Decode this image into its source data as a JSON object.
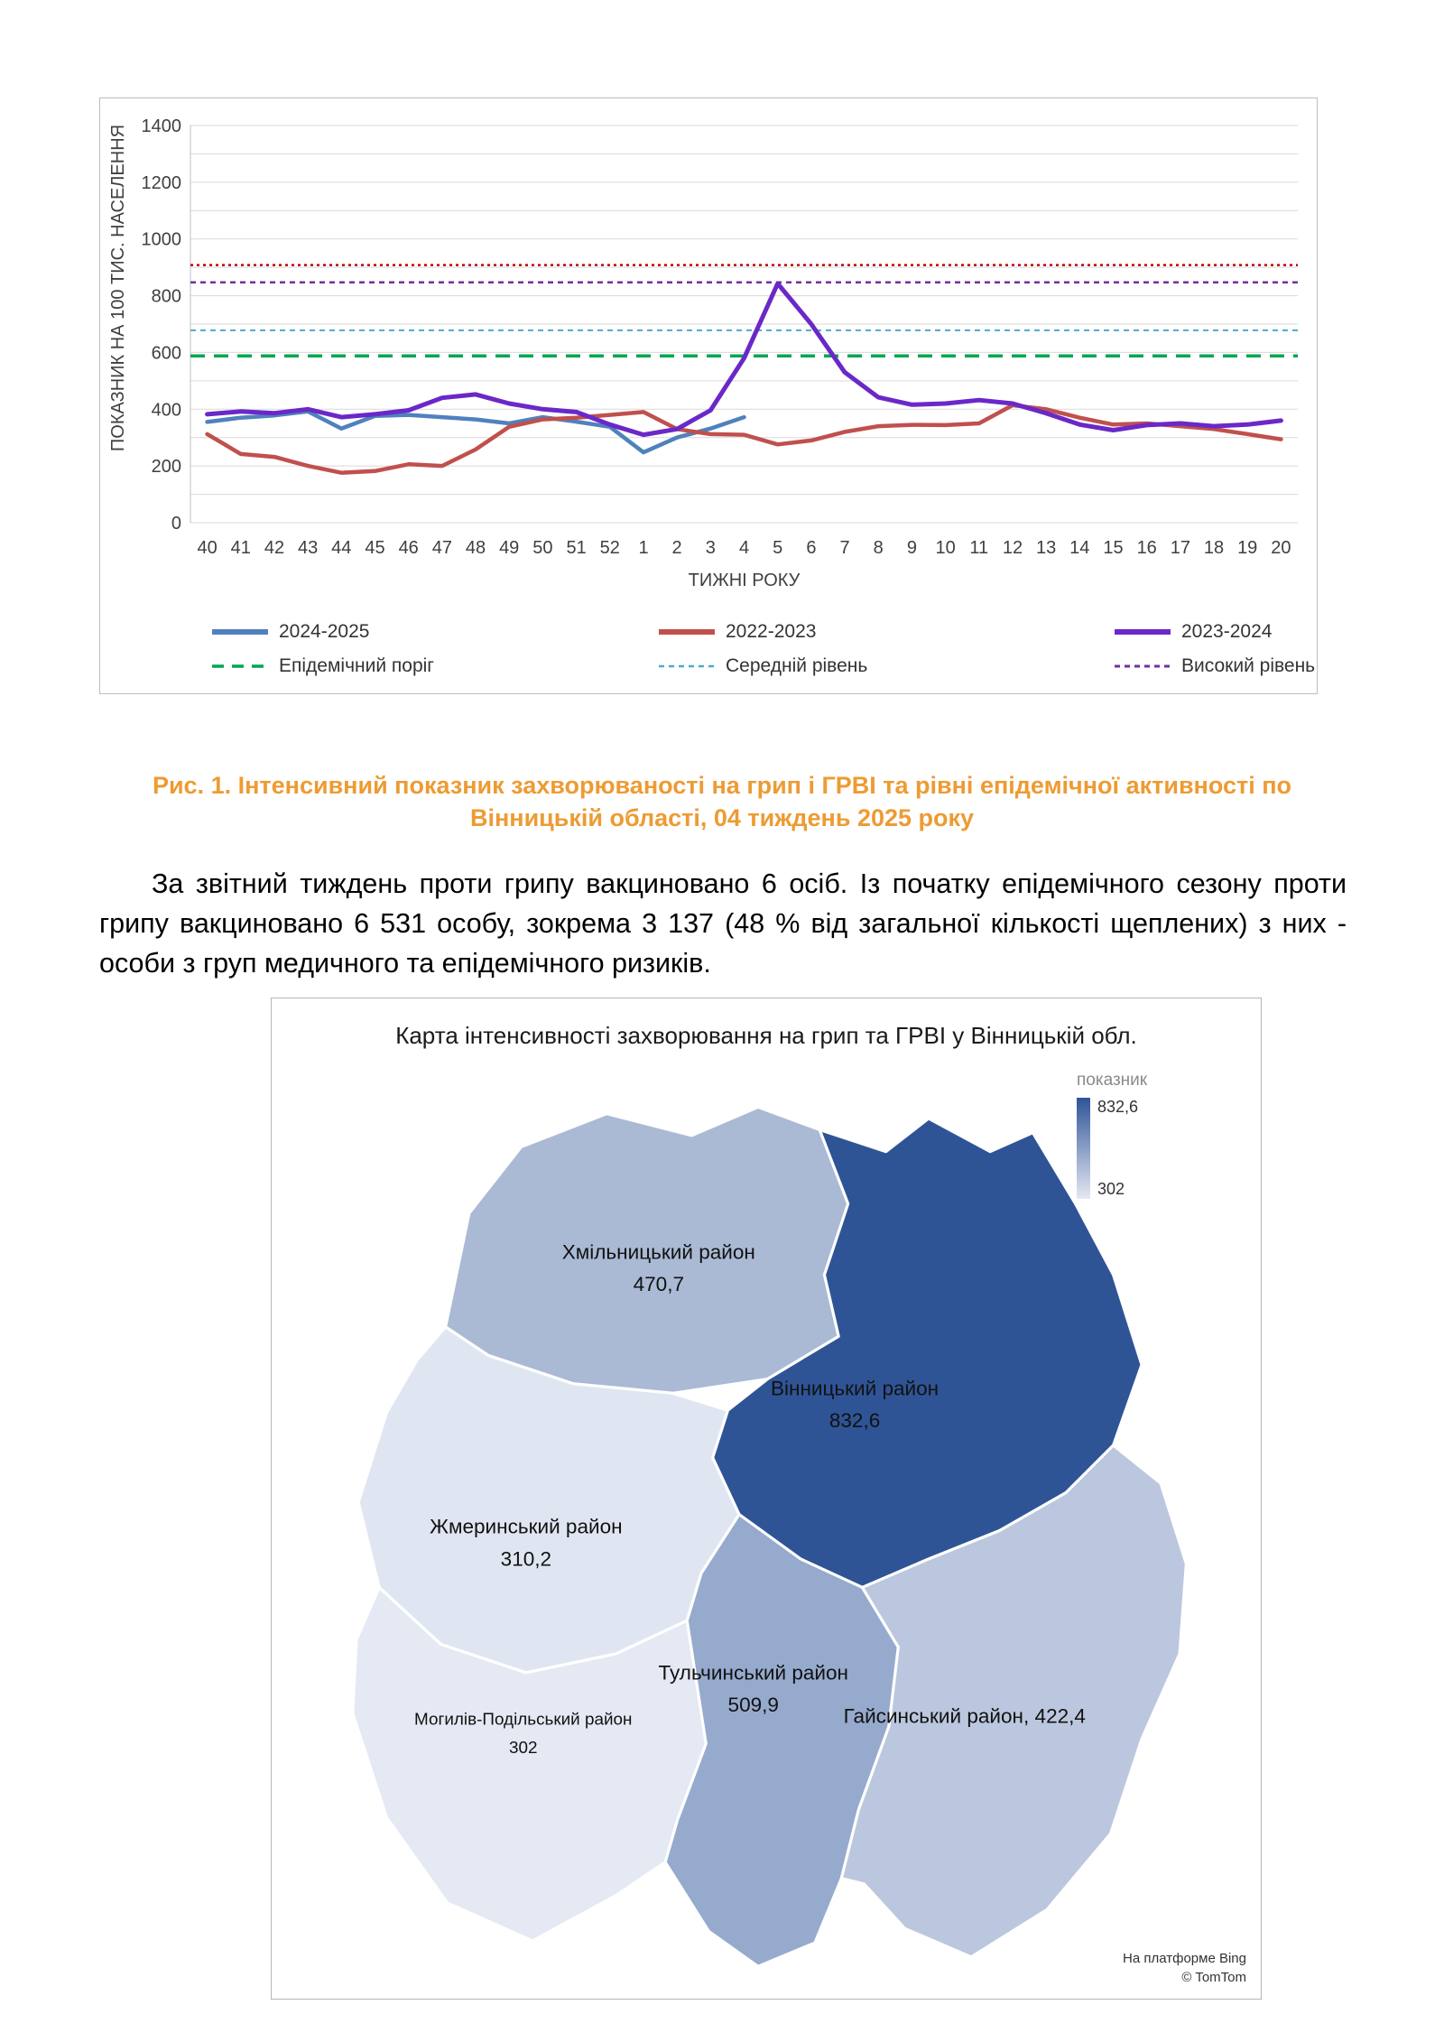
{
  "figure1": {
    "caption": "Рис. 1. Інтенсивний показник захворюваності на грип і ГРВІ та рівні епідемічної активності  по Вінницькій області, 04 тиждень 2025 року",
    "caption_color": "#ed9b33"
  },
  "paragraph": "За звітний тиждень проти грипу вакциновано 6 осіб. Із початку епідемічного сезону проти грипу вакциновано 6 531 особу, зокрема 3 137 (48 % від загальної кількості щеплених) з них - особи з груп медичного та епідемічного ризиків.",
  "chart_data": {
    "type": "line",
    "title": "",
    "xlabel": "ТИЖНІ РОКУ",
    "ylabel": "ПОКАЗНИК НА 100 ТИС. НАСЕЛЕННЯ",
    "ylim": [
      0,
      1400
    ],
    "ytick_step": 200,
    "grid_step": 100,
    "legend_position": "bottom",
    "x_labels": [
      "40",
      "41",
      "42",
      "43",
      "44",
      "45",
      "46",
      "47",
      "48",
      "49",
      "50",
      "51",
      "52",
      "1",
      "2",
      "3",
      "4",
      "5",
      "6",
      "7",
      "8",
      "9",
      "10",
      "11",
      "12",
      "13",
      "14",
      "15",
      "16",
      "17",
      "18",
      "19",
      "20"
    ],
    "series": [
      {
        "name": "2024-2025",
        "color": "#4f81bd",
        "w": 4.5,
        "values": [
          355,
          370,
          378,
          392,
          332,
          376,
          380,
          372,
          364,
          350,
          372,
          356,
          338,
          248,
          300,
          332,
          372
        ]
      },
      {
        "name": "2022-2023",
        "color": "#c0504d",
        "w": 4.5,
        "values": [
          312,
          242,
          232,
          200,
          176,
          182,
          206,
          200,
          258,
          338,
          364,
          370,
          380,
          390,
          330,
          312,
          310,
          276,
          290,
          320,
          340,
          345,
          344,
          350,
          414,
          400,
          370,
          346,
          350,
          340,
          330,
          312,
          294
        ]
      },
      {
        "name": "2023-2024",
        "color": "#6a28c8",
        "w": 5,
        "values": [
          382,
          392,
          386,
          400,
          372,
          382,
          396,
          440,
          452,
          420,
          400,
          390,
          346,
          310,
          330,
          396,
          580,
          843,
          700,
          530,
          442,
          416,
          420,
          432,
          420,
          386,
          346,
          326,
          344,
          350,
          340,
          346,
          360
        ]
      }
    ],
    "thresholds": [
      {
        "name": "Епідемічний поріг",
        "color": "#00a651",
        "value": 588,
        "dash": "16,10",
        "w": 3.5,
        "legend_dash": "13,9"
      },
      {
        "name": "Середній рівень",
        "color": "#4bacc6",
        "value": 678,
        "dash": "6,5",
        "w": 2,
        "legend_dash": "6,5"
      },
      {
        "name": "Високий рівень",
        "color": "#7030a0",
        "value": 847,
        "dash": "6,5",
        "w": 2.5,
        "legend_dash": "6,5"
      },
      {
        "name": "",
        "color": "#c00000",
        "value": 908,
        "dash": "3,4",
        "w": 2.5,
        "legend_dash": "3,4"
      }
    ]
  },
  "map": {
    "title": "Карта інтенсивності захворювання на грип та ГРВІ у Вінницькій обл.",
    "legend": {
      "label": "показник",
      "max": "832,6",
      "min": "302",
      "color_max": "#2f5496",
      "color_min": "#e4e9f3"
    },
    "regions": [
      {
        "name": "Хмільницький район",
        "value": "470,7",
        "line1": "Хмільницький район",
        "line2": "470,7",
        "color": "#aabad5"
      },
      {
        "name": "Вінницький район",
        "value": "832,6",
        "line1": "Вінницький район",
        "line2": "832,6",
        "color": "#2f5496"
      },
      {
        "name": "Жмеринський район",
        "value": "310,2",
        "line1": "Жмеринський район",
        "line2": "310,2",
        "color": "#e0e6f1"
      },
      {
        "name": "Могилів-Подільський район",
        "value": "302",
        "line1": "Могилів-Подільський район",
        "line2": "302",
        "color": "#e4e9f3"
      },
      {
        "name": "Тульчинський район",
        "value": "509,9",
        "line1": "Тульчинський район",
        "line2": "509,9",
        "color": "#96aacd"
      },
      {
        "name": "Гайсинський район",
        "value": "422,4",
        "line1": "Гайсинський район, 422,4",
        "line2": "",
        "color": "#bbc7de"
      }
    ],
    "attribution_line1": "На платформе Bing",
    "attribution_line2": "© TomTom"
  }
}
